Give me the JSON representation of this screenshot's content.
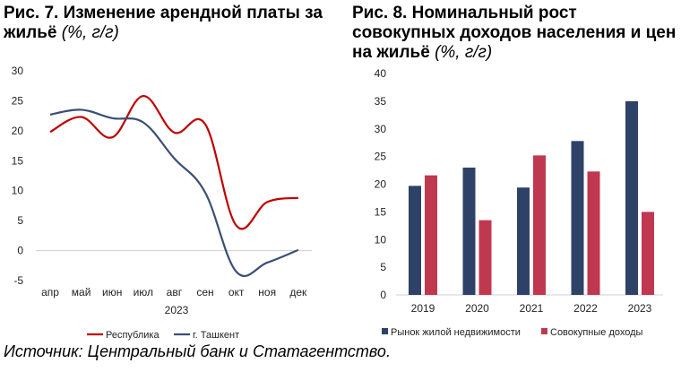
{
  "source": "Источник: Центральный банк и Статагентство.",
  "chart_data": [
    {
      "type": "line",
      "title_main": "Рис. 7. Изменение арендной платы за жильё",
      "title_unit": "(%, г/г)",
      "x": [
        "апр",
        "май",
        "июн",
        "июл",
        "авг",
        "сен",
        "окт",
        "ноя",
        "дек"
      ],
      "xlabel": "2023",
      "ylim": [
        -5,
        30
      ],
      "yticks": [
        "-5",
        "0",
        "5",
        "10",
        "15",
        "20",
        "25",
        "30"
      ],
      "grid": false,
      "legend_position": "bottom",
      "series": [
        {
          "name": "Республика",
          "color": "#c00000",
          "values": [
            19.8,
            22.3,
            18.9,
            25.8,
            19.7,
            21.1,
            4.2,
            8.1,
            8.8
          ]
        },
        {
          "name": "г. Ташкент",
          "color": "#3b4f75",
          "values": [
            22.7,
            23.5,
            22.1,
            21.4,
            15.4,
            9.7,
            -3.5,
            -2.0,
            0.1
          ]
        }
      ]
    },
    {
      "type": "bar",
      "title_main": "Рис. 8. Номинальный рост совокупных доходов населения и цен на жильё",
      "title_unit": "(%, г/г)",
      "categories": [
        "2019",
        "2020",
        "2021",
        "2022",
        "2023"
      ],
      "ylim": [
        0,
        40
      ],
      "yticks": [
        "0",
        "5",
        "10",
        "15",
        "20",
        "25",
        "30",
        "35",
        "40"
      ],
      "grid": false,
      "legend_position": "bottom",
      "series": [
        {
          "name": "Рынок жилой недвижимости",
          "color": "#2e4268",
          "values": [
            19.7,
            23.0,
            19.4,
            27.8,
            35.0
          ]
        },
        {
          "name": "Совокупные доходы",
          "color": "#c0384f",
          "values": [
            21.6,
            13.5,
            25.2,
            22.3,
            15.0
          ]
        }
      ]
    }
  ]
}
